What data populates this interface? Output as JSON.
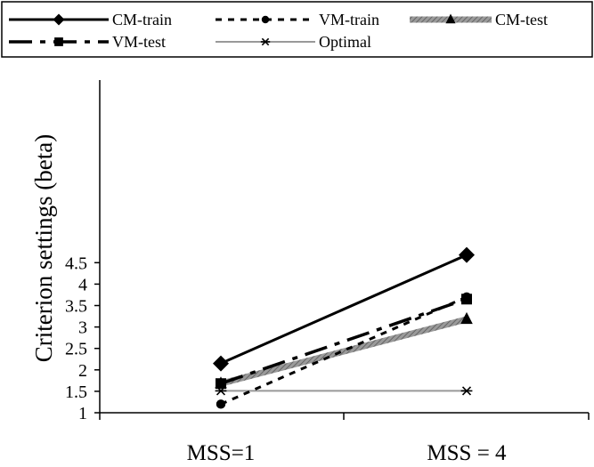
{
  "chart_data": {
    "type": "line",
    "categories": [
      "MSS=1",
      "MSS = 4"
    ],
    "ylabel": "Criterion settings (beta)",
    "ylim": [
      1,
      4.5
    ],
    "yticks": [
      "1",
      "1.5",
      "2",
      "2.5",
      "3",
      "3.5",
      "4",
      "4.5"
    ],
    "grid": false,
    "legend_position": "top",
    "series": [
      {
        "name": "CM-train",
        "values": [
          2.15,
          4.68
        ],
        "marker": "diamond",
        "line": "solid",
        "color": "#000000"
      },
      {
        "name": "VM-train",
        "values": [
          1.2,
          3.7
        ],
        "marker": "circle",
        "line": "dotted",
        "color": "#000000"
      },
      {
        "name": "CM-test",
        "values": [
          1.68,
          3.18
        ],
        "marker": "triangle",
        "line": "hatched-gray",
        "color": "#777777"
      },
      {
        "name": "VM-test",
        "values": [
          1.68,
          3.65
        ],
        "marker": "square",
        "line": "long-dash",
        "color": "#000000"
      },
      {
        "name": "Optimal",
        "values": [
          1.51,
          1.51
        ],
        "marker": "asterisk",
        "line": "thin-gray",
        "color": "#888888"
      }
    ]
  }
}
